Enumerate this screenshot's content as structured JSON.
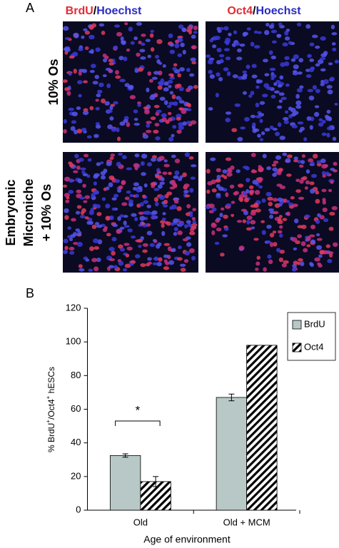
{
  "panel_a": {
    "label": "A",
    "columns": [
      {
        "marker": "BrdU",
        "separator": "/",
        "stain": "Hoechst"
      },
      {
        "marker": "Oct4",
        "separator": "/",
        "stain": "Hoechst"
      }
    ],
    "rows": [
      [
        "10% Os"
      ],
      [
        "Embryonic",
        "Microniche",
        "+ 10% Os"
      ]
    ]
  },
  "panel_b_label": "B",
  "chart_data": {
    "type": "bar",
    "y_label": [
      "% BrdU",
      "+",
      "/Oct4",
      "+",
      " hESCs"
    ],
    "x_label": "Age of environment",
    "categories": [
      "Old",
      "Old + MCM"
    ],
    "series": [
      {
        "name": "BrdU",
        "color": "#b8c8c7",
        "values": [
          32.5,
          67
        ],
        "errors": [
          1,
          2
        ]
      },
      {
        "name": "Oct4",
        "color": "#000000",
        "hatch": true,
        "values": [
          17,
          98
        ],
        "errors": [
          3,
          null
        ]
      }
    ],
    "ylim": [
      0,
      120
    ],
    "yticks": [
      0,
      20,
      40,
      60,
      80,
      100,
      120
    ],
    "annotation": "*",
    "legend": "top-right"
  }
}
